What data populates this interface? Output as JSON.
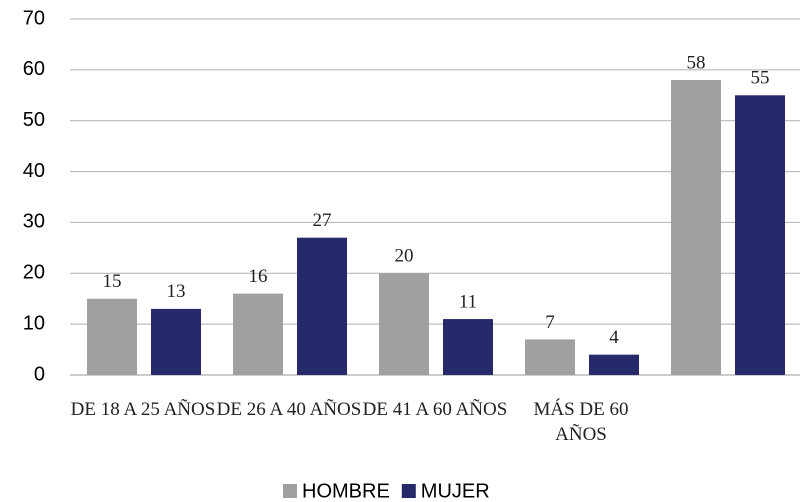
{
  "chart_data": {
    "type": "bar",
    "categories": [
      "DE 18 A 25 AÑOS",
      "DE 26 A 40 AÑOS",
      "DE 41 A 60 AÑOS",
      "MÁS DE 60 AÑOS",
      null
    ],
    "series": [
      {
        "name": "HOMBRE",
        "color": "#a0a0a0",
        "values": [
          15,
          16,
          20,
          7,
          58
        ]
      },
      {
        "name": "MUJER",
        "color": "#262a6b",
        "values": [
          13,
          27,
          11,
          4,
          55
        ]
      }
    ],
    "ylim": [
      0,
      70
    ],
    "yticks": [
      0,
      10,
      20,
      30,
      40,
      50,
      60,
      70
    ],
    "grid": true,
    "legend": "bottom"
  }
}
